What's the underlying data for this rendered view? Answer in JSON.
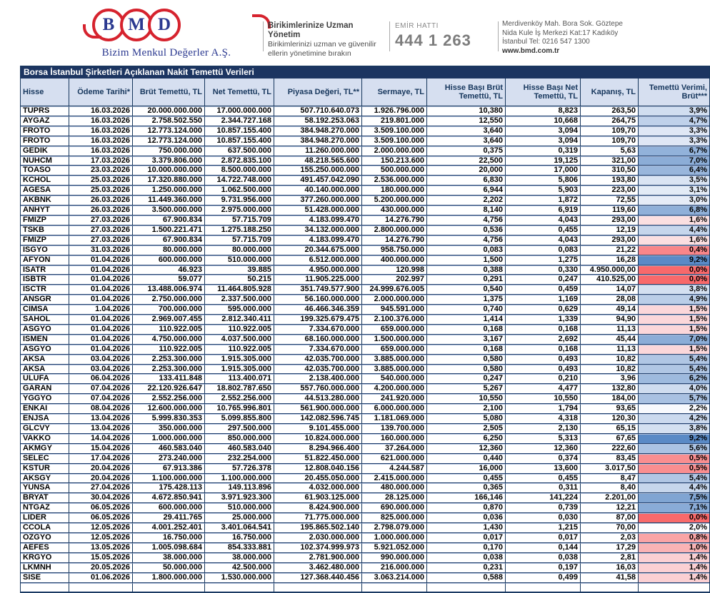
{
  "header": {
    "logo": {
      "letters": [
        "B",
        "M",
        "D"
      ],
      "company": "Bizim Menkul Değerler A.Ş.",
      "accent_red": "#D6232E",
      "accent_navy": "#2B3990"
    },
    "slogan": {
      "title": "Birikimlerinize Uzman Yönetim",
      "line1": "Birikimlerinizi uzman ve güvenilir",
      "line2": "ellerin yönetimine bırakın"
    },
    "order_line": {
      "label": "EMİR HATTI",
      "number": "444 1 263"
    },
    "contact": {
      "line1": "Merdivenköy Mah. Bora Sok. Göztepe",
      "line2": "Nida Kule İş Merkezi Kat:17 Kadıköy",
      "line3": "İstanbul    Tel: 0216 547 1300",
      "website": "www.bmd.com.tr"
    }
  },
  "table": {
    "title": "Borsa İstanbul Şirketleri Açıklanan Nakit Temettü Verileri",
    "title_bg": "#1C3561",
    "header_bg": "#D6DFF0",
    "border_color": "#17375D",
    "columns": [
      "Hisse",
      "Ödeme Tarihi*",
      "Brüt Temettü, TL",
      "Net Temettü, TL",
      "Piyasa Değeri, TL**",
      "Sermaye, TL",
      "Hisse Başı Brüt Temettü, TL",
      "Hisse Başı Net Temettü, TL",
      "Kapanış, TL",
      "Temettü Verimi, Brüt***"
    ],
    "column_keys": [
      "hisse",
      "odeme-tarihi",
      "brut-temettu",
      "net-temettu",
      "piyasa-degeri",
      "sermaye",
      "hisse-basi-brut",
      "hisse-basi-net",
      "kapanis",
      "temettu-verimi"
    ],
    "yield_scale": {
      "min_value": 0.0,
      "mid_value": 2.0,
      "max_value": 9.2,
      "min_color": "#F8696B",
      "mid_color": "#FCFCFF",
      "max_color": "#5A8AC6"
    },
    "rows": [
      [
        "TUPRS",
        "16.03.2026",
        "20.000.000.000",
        "17.000.000.000",
        "507.710.640.073",
        "1.926.796.000",
        "10,380",
        "8,823",
        "263,50",
        "3,9%"
      ],
      [
        "AYGAZ",
        "16.03.2026",
        "2.758.502.550",
        "2.344.727.168",
        "58.192.253.063",
        "219.801.000",
        "12,550",
        "10,668",
        "264,75",
        "4,7%"
      ],
      [
        "FROTO",
        "16.03.2026",
        "12.773.124.000",
        "10.857.155.400",
        "384.948.270.000",
        "3.509.100.000",
        "3,640",
        "3,094",
        "109,70",
        "3,3%"
      ],
      [
        "FROTO",
        "16.03.2026",
        "12.773.124.000",
        "10.857.155.400",
        "384.948.270.000",
        "3.509.100.000",
        "3,640",
        "3,094",
        "109,70",
        "3,3%"
      ],
      [
        "GEDIK",
        "16.03.2026",
        "750.000.000",
        "637.500.000",
        "11.260.000.000",
        "2.000.000.000",
        "0,375",
        "0,319",
        "5,63",
        "6,7%"
      ],
      [
        "NUHCM",
        "17.03.2026",
        "3.379.806.000",
        "2.872.835.100",
        "48.218.565.600",
        "150.213.600",
        "22,500",
        "19,125",
        "321,00",
        "7,0%"
      ],
      [
        "TOASO",
        "23.03.2026",
        "10.000.000.000",
        "8.500.000.000",
        "155.250.000.000",
        "500.000.000",
        "20,000",
        "17,000",
        "310,50",
        "6,4%"
      ],
      [
        "KCHOL",
        "25.03.2026",
        "17.320.880.000",
        "14.722.748.000",
        "491.457.042.090",
        "2.536.000.000",
        "6,830",
        "5,806",
        "193,80",
        "3,5%"
      ],
      [
        "AGESA",
        "25.03.2026",
        "1.250.000.000",
        "1.062.500.000",
        "40.140.000.000",
        "180.000.000",
        "6,944",
        "5,903",
        "223,00",
        "3,1%"
      ],
      [
        "AKBNK",
        "26.03.2026",
        "11.449.360.000",
        "9.731.956.000",
        "377.260.000.000",
        "5.200.000.000",
        "2,202",
        "1,872",
        "72,55",
        "3,0%"
      ],
      [
        "ANHYT",
        "26.03.2026",
        "3.500.000.000",
        "2.975.000.000",
        "51.428.000.000",
        "430.000.000",
        "8,140",
        "6,919",
        "119,60",
        "6,8%"
      ],
      [
        "FMIZP",
        "27.03.2026",
        "67.900.834",
        "57.715.709",
        "4.183.099.470",
        "14.276.790",
        "4,756",
        "4,043",
        "293,00",
        "1,6%"
      ],
      [
        "TSKB",
        "27.03.2026",
        "1.500.221.471",
        "1.275.188.250",
        "34.132.000.000",
        "2.800.000.000",
        "0,536",
        "0,455",
        "12,19",
        "4,4%"
      ],
      [
        "FMIZP",
        "27.03.2026",
        "67.900.834",
        "57.715.709",
        "4.183.099.470",
        "14.276.790",
        "4,756",
        "4,043",
        "293,00",
        "1,6%"
      ],
      [
        "ISGYO",
        "31.03.2026",
        "80.000.000",
        "80.000.000",
        "20.344.675.000",
        "958.750.000",
        "0,083",
        "0,083",
        "21,22",
        "0,4%"
      ],
      [
        "AFYON",
        "01.04.2026",
        "600.000.000",
        "510.000.000",
        "6.512.000.000",
        "400.000.000",
        "1,500",
        "1,275",
        "16,28",
        "9,2%"
      ],
      [
        "ISATR",
        "01.04.2026",
        "46.923",
        "39.885",
        "4.950.000.000",
        "120.998",
        "0,388",
        "0,330",
        "4.950.000,00",
        "0,0%"
      ],
      [
        "ISBTR",
        "01.04.2026",
        "59.077",
        "50.215",
        "11.905.225.000",
        "202.997",
        "0,291",
        "0,247",
        "410.525,00",
        "0,0%"
      ],
      [
        "ISCTR",
        "01.04.2026",
        "13.488.006.974",
        "11.464.805.928",
        "351.749.577.900",
        "24.999.676.005",
        "0,540",
        "0,459",
        "14,07",
        "3,8%"
      ],
      [
        "ANSGR",
        "01.04.2026",
        "2.750.000.000",
        "2.337.500.000",
        "56.160.000.000",
        "2.000.000.000",
        "1,375",
        "1,169",
        "28,08",
        "4,9%"
      ],
      [
        "CIMSA",
        "1.04.2026",
        "700.000.000",
        "595.000.000",
        "46.466.346.359",
        "945.591.000",
        "0,740",
        "0,629",
        "49,14",
        "1,5%"
      ],
      [
        "SAHOL",
        "01.04.2026",
        "2.969.007.455",
        "2.812.340.411",
        "199.325.679.475",
        "2.100.376.000",
        "1,414",
        "1,339",
        "94,90",
        "1,5%"
      ],
      [
        "ASGYO",
        "01.04.2026",
        "110.922.005",
        "110.922.005",
        "7.334.670.000",
        "659.000.000",
        "0,168",
        "0,168",
        "11,13",
        "1,5%"
      ],
      [
        "ISMEN",
        "01.04.2026",
        "4.750.000.000",
        "4.037.500.000",
        "68.160.000.000",
        "1.500.000.000",
        "3,167",
        "2,692",
        "45,44",
        "7,0%"
      ],
      [
        "ASGYO",
        "01.04.2026",
        "110.922.005",
        "110.922.005",
        "7.334.670.000",
        "659.000.000",
        "0,168",
        "0,168",
        "11,13",
        "1,5%"
      ],
      [
        "AKSA",
        "03.04.2026",
        "2.253.300.000",
        "1.915.305.000",
        "42.035.700.000",
        "3.885.000.000",
        "0,580",
        "0,493",
        "10,82",
        "5,4%"
      ],
      [
        "AKSA",
        "03.04.2026",
        "2.253.300.000",
        "1.915.305.000",
        "42.035.700.000",
        "3.885.000.000",
        "0,580",
        "0,493",
        "10,82",
        "5,4%"
      ],
      [
        "ULUFA",
        "06.04.2026",
        "133.411.848",
        "113.400.071",
        "2.138.400.000",
        "540.000.000",
        "0,247",
        "0,210",
        "3,96",
        "6,2%"
      ],
      [
        "GARAN",
        "07.04.2026",
        "22.120.926.647",
        "18.802.787.650",
        "557.760.000.000",
        "4.200.000.000",
        "5,267",
        "4,477",
        "132,80",
        "4,0%"
      ],
      [
        "YGGYO",
        "07.04.2026",
        "2.552.256.000",
        "2.552.256.000",
        "44.513.280.000",
        "241.920.000",
        "10,550",
        "10,550",
        "184,00",
        "5,7%"
      ],
      [
        "ENKAI",
        "08.04.2026",
        "12.600.000.000",
        "10.765.996.801",
        "561.900.000.000",
        "6.000.000.000",
        "2,100",
        "1,794",
        "93,65",
        "2,2%"
      ],
      [
        "ENJSA",
        "13.04.2026",
        "5.999.830.353",
        "5.099.855.800",
        "142.082.596.745",
        "1.181.069.000",
        "5,080",
        "4,318",
        "120,30",
        "4,2%"
      ],
      [
        "GLCVY",
        "13.04.2026",
        "350.000.000",
        "297.500.000",
        "9.101.455.000",
        "139.700.000",
        "2,505",
        "2,130",
        "65,15",
        "3,8%"
      ],
      [
        "VAKKO",
        "14.04.2026",
        "1.000.000.000",
        "850.000.000",
        "10.824.000.000",
        "160.000.000",
        "6,250",
        "5,313",
        "67,65",
        "9,2%"
      ],
      [
        "AKMGY",
        "15.04.2026",
        "460.583.040",
        "460.583.040",
        "8.294.966.400",
        "37.264.000",
        "12,360",
        "12,360",
        "222,60",
        "5,6%"
      ],
      [
        "SELEC",
        "17.04.2026",
        "273.240.000",
        "232.254.000",
        "51.822.450.000",
        "621.000.000",
        "0,440",
        "0,374",
        "83,45",
        "0,5%"
      ],
      [
        "KSTUR",
        "20.04.2026",
        "67.913.386",
        "57.726.378",
        "12.808.040.156",
        "4.244.587",
        "16,000",
        "13,600",
        "3.017,50",
        "0,5%"
      ],
      [
        "AKSGY",
        "20.04.2026",
        "1.100.000.000",
        "1.100.000.000",
        "20.455.050.000",
        "2.415.000.000",
        "0,455",
        "0,455",
        "8,47",
        "5,4%"
      ],
      [
        "YUNSA",
        "27.04.2026",
        "175.428.113",
        "149.113.896",
        "4.032.000.000",
        "480.000.000",
        "0,365",
        "0,311",
        "8,40",
        "4,4%"
      ],
      [
        "BRYAT",
        "30.04.2026",
        "4.672.850.941",
        "3.971.923.300",
        "61.903.125.000",
        "28.125.000",
        "166,146",
        "141,224",
        "2.201,00",
        "7,5%"
      ],
      [
        "NTGAZ",
        "06.05.2026",
        "600.000.000",
        "510.000.000",
        "8.424.900.000",
        "690.000.000",
        "0,870",
        "0,739",
        "12,21",
        "7,1%"
      ],
      [
        "LIDER",
        "06.05.2026",
        "29.411.765",
        "25.000.000",
        "71.775.000.000",
        "825.000.000",
        "0,036",
        "0,030",
        "87,00",
        "0,0%"
      ],
      [
        "CCOLA",
        "12.05.2026",
        "4.001.252.401",
        "3.401.064.541",
        "195.865.502.140",
        "2.798.079.000",
        "1,430",
        "1,215",
        "70,00",
        "2,0%"
      ],
      [
        "OZGYO",
        "12.05.2026",
        "16.750.000",
        "16.750.000",
        "2.030.000.000",
        "1.000.000.000",
        "0,017",
        "0,017",
        "2,03",
        "0,8%"
      ],
      [
        "AEFES",
        "13.05.2026",
        "1.005.098.684",
        "854.333.881",
        "102.374.999.973",
        "5.921.052.000",
        "0,170",
        "0,144",
        "17,29",
        "1,0%"
      ],
      [
        "KRGYO",
        "15.05.2026",
        "38.000.000",
        "38.000.000",
        "2.781.900.000",
        "990.000.000",
        "0,038",
        "0,038",
        "2,81",
        "1,4%"
      ],
      [
        "LKMNH",
        "20.05.2026",
        "50.000.000",
        "42.500.000",
        "3.462.480.000",
        "216.000.000",
        "0,231",
        "0,197",
        "16,03",
        "1,4%"
      ],
      [
        "SISE",
        "01.06.2026",
        "1.800.000.000",
        "1.530.000.000",
        "127.368.440.456",
        "3.063.214.000",
        "0,588",
        "0,499",
        "41,58",
        "1,4%"
      ]
    ]
  }
}
